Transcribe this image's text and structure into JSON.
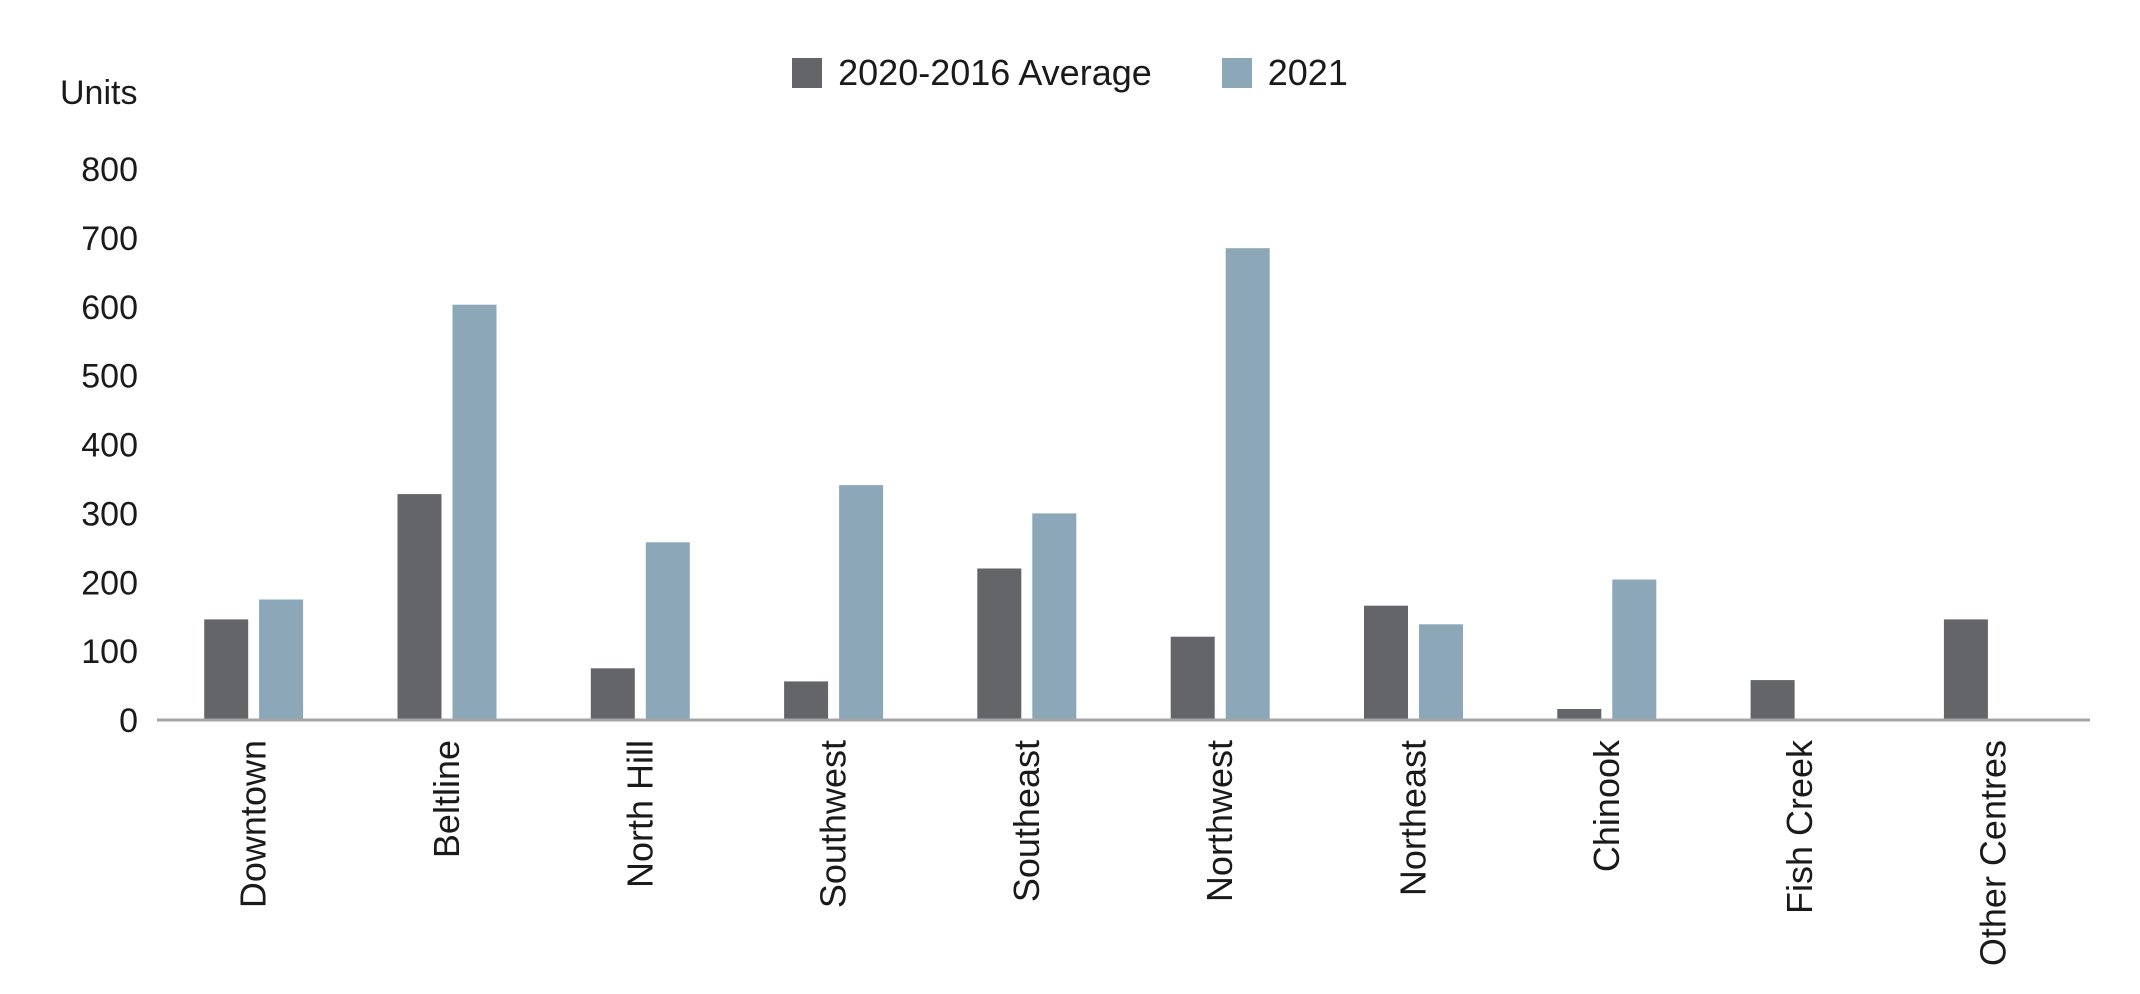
{
  "chart_data": {
    "type": "bar",
    "title": "",
    "xlabel": "",
    "ylabel": "Units",
    "ylim": [
      0,
      800
    ],
    "yticks": [
      0,
      100,
      200,
      300,
      400,
      500,
      600,
      700,
      800
    ],
    "grid": false,
    "legend_position": "top-center",
    "categories": [
      "Downtown",
      "Beltline",
      "North Hill",
      "Southwest",
      "Southeast",
      "Northwest",
      "Northeast",
      "Chinook",
      "Fish Creek",
      "Other Centres"
    ],
    "series": [
      {
        "name": "2020-2016 Average",
        "color": "#636569",
        "values": [
          146,
          328,
          75,
          56,
          220,
          121,
          166,
          16,
          58,
          146
        ]
      },
      {
        "name": "2021",
        "color": "#8ba7b8",
        "values": [
          175,
          603,
          258,
          341,
          300,
          685,
          139,
          204,
          2,
          0
        ]
      }
    ],
    "axis_color": "#a6a6a6",
    "text_color": "#1a1a1a"
  }
}
